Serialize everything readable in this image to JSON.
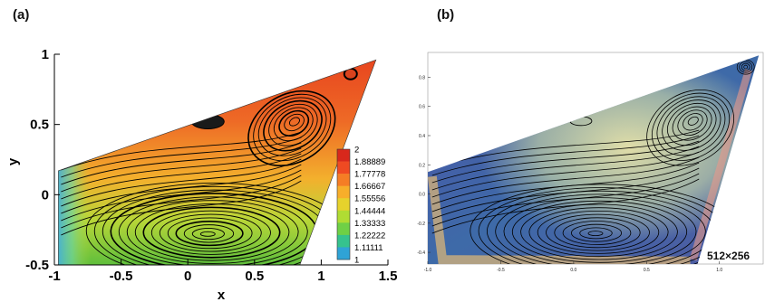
{
  "panel_a_label": "(a)",
  "panel_b_label": "(b)",
  "resolution_label": "512×256",
  "colors": {
    "field_high": "#e9552a",
    "field_mid": "#f2a72e",
    "field_low": "#8ccf3a",
    "field_min": "#3aa6e6",
    "dark_field": "#4e5aa0",
    "streamline": "#000000"
  },
  "chart_data": [
    {
      "type": "contour-streamline",
      "panel": "(a)",
      "xlabel": "x",
      "ylabel": "y",
      "xlim": [
        -1.0,
        1.5
      ],
      "ylim": [
        -0.5,
        1.0
      ],
      "xticks": [
        -1,
        -0.5,
        0,
        0.5,
        1,
        1.5
      ],
      "xtick_labels": [
        "-1",
        "-0.5",
        "0",
        "0.5",
        "1",
        "1.5"
      ],
      "yticks": [
        -0.5,
        0,
        0.5,
        1
      ],
      "ytick_labels": [
        "-0.5",
        "0",
        "0.5",
        "1"
      ],
      "domain_vertices": [
        [
          -0.97,
          -0.5
        ],
        [
          0.84,
          -0.5
        ],
        [
          1.41,
          0.96
        ],
        [
          -0.97,
          0.17
        ]
      ],
      "vortex_centers": [
        [
          0.15,
          -0.28
        ],
        [
          0.8,
          0.52
        ],
        [
          0.15,
          0.52
        ],
        [
          1.22,
          0.86
        ]
      ],
      "colorbar": {
        "levels": [
          "2",
          "1.88889",
          "1.77778",
          "1.66667",
          "1.55556",
          "1.44444",
          "1.33333",
          "1.22222",
          "1.11111",
          "1"
        ],
        "colors": [
          "#d8281c",
          "#ef4a22",
          "#f57d25",
          "#f7ae2a",
          "#e6d22c",
          "#b0dc33",
          "#6fd046",
          "#36c28e",
          "#2fa3d6",
          "#1f5de6"
        ]
      }
    },
    {
      "type": "contour-streamline",
      "panel": "(b)",
      "xlim": [
        -1.0,
        1.3
      ],
      "ylim": [
        -0.48,
        0.97
      ],
      "xticks": [
        -1,
        -0.5,
        0,
        0.5,
        1
      ],
      "xtick_labels": [
        "-1.0",
        "-0.5",
        "0.0",
        "0.5",
        "1.0"
      ],
      "yticks": [
        -0.4,
        -0.2,
        0,
        0.2,
        0.4,
        0.6,
        0.8
      ],
      "ytick_labels": [
        "-0.4",
        "-0.2",
        "0.0",
        "0.2",
        "0.4",
        "0.6",
        "0.8"
      ],
      "domain_vertices": [
        [
          -1.0,
          -0.48
        ],
        [
          0.85,
          -0.48
        ],
        [
          1.27,
          0.95
        ],
        [
          -1.0,
          0.15
        ]
      ],
      "vortex_centers": [
        [
          0.15,
          -0.27
        ],
        [
          0.82,
          0.5
        ],
        [
          0.05,
          0.5
        ],
        [
          1.18,
          0.87
        ]
      ]
    }
  ]
}
